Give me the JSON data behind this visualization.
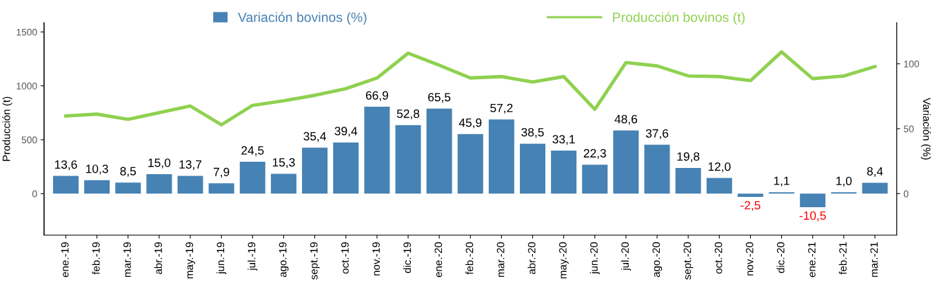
{
  "chart_data": {
    "type": "bar",
    "categories": [
      "ene.-19",
      "feb.-19",
      "mar.-19",
      "abr.-19",
      "may.-19",
      "jun.-19",
      "jul.-19",
      "ago.-19",
      "sept.-19",
      "oct.-19",
      "nov.-19",
      "dic.-19",
      "ene.-20",
      "feb.-20",
      "mar.-20",
      "abr.-20",
      "may.-20",
      "jun.-20",
      "jul.-20",
      "ago.-20",
      "sept.-20",
      "oct.-20",
      "nov.-20",
      "dic.-20",
      "ene.-21",
      "feb.-21",
      "mar.-21"
    ],
    "series": [
      {
        "name": "Variación bovinos (%)",
        "axis": "y2",
        "color": "#4682b4",
        "values": [
          13.6,
          10.3,
          8.5,
          15.0,
          13.7,
          7.9,
          24.5,
          15.3,
          35.4,
          39.4,
          66.9,
          52.8,
          65.5,
          45.9,
          57.2,
          38.5,
          33.1,
          22.3,
          48.6,
          37.6,
          19.8,
          12.0,
          -2.5,
          1.1,
          -10.5,
          1.0,
          8.4
        ],
        "value_labels": [
          "13,6",
          "10,3",
          "8,5",
          "15,0",
          "13,7",
          "7,9",
          "24,5",
          "15,3",
          "35,4",
          "39,4",
          "66,9",
          "52,8",
          "65,5",
          "45,9",
          "57,2",
          "38,5",
          "33,1",
          "22,3",
          "48,6",
          "37,6",
          "19,8",
          "12,0",
          "-2,5",
          "1,1",
          "-10,5",
          "1,0",
          "8,4"
        ]
      },
      {
        "name": "Producción bovinos (t)",
        "type": "line",
        "axis": "y",
        "color": "#8fd14f",
        "values": [
          720,
          738,
          689,
          751,
          813,
          639,
          819,
          862,
          912,
          974,
          1073,
          1303,
          1191,
          1073,
          1086,
          1036,
          1086,
          782,
          1216,
          1185,
          1092,
          1086,
          1048,
          1315,
          1067,
          1092,
          1179
        ]
      }
    ],
    "ylabel": "Producción (t)",
    "y2label": "Variación (%)",
    "ylim": [
      -385,
      1585
    ],
    "yticks": [
      0,
      500,
      1000,
      1500
    ],
    "y2lim": [
      -32,
      131.6
    ],
    "y2ticks": [
      0,
      50,
      100
    ],
    "legend": "top",
    "grid": false,
    "marker": "none",
    "line_style": "solid"
  }
}
